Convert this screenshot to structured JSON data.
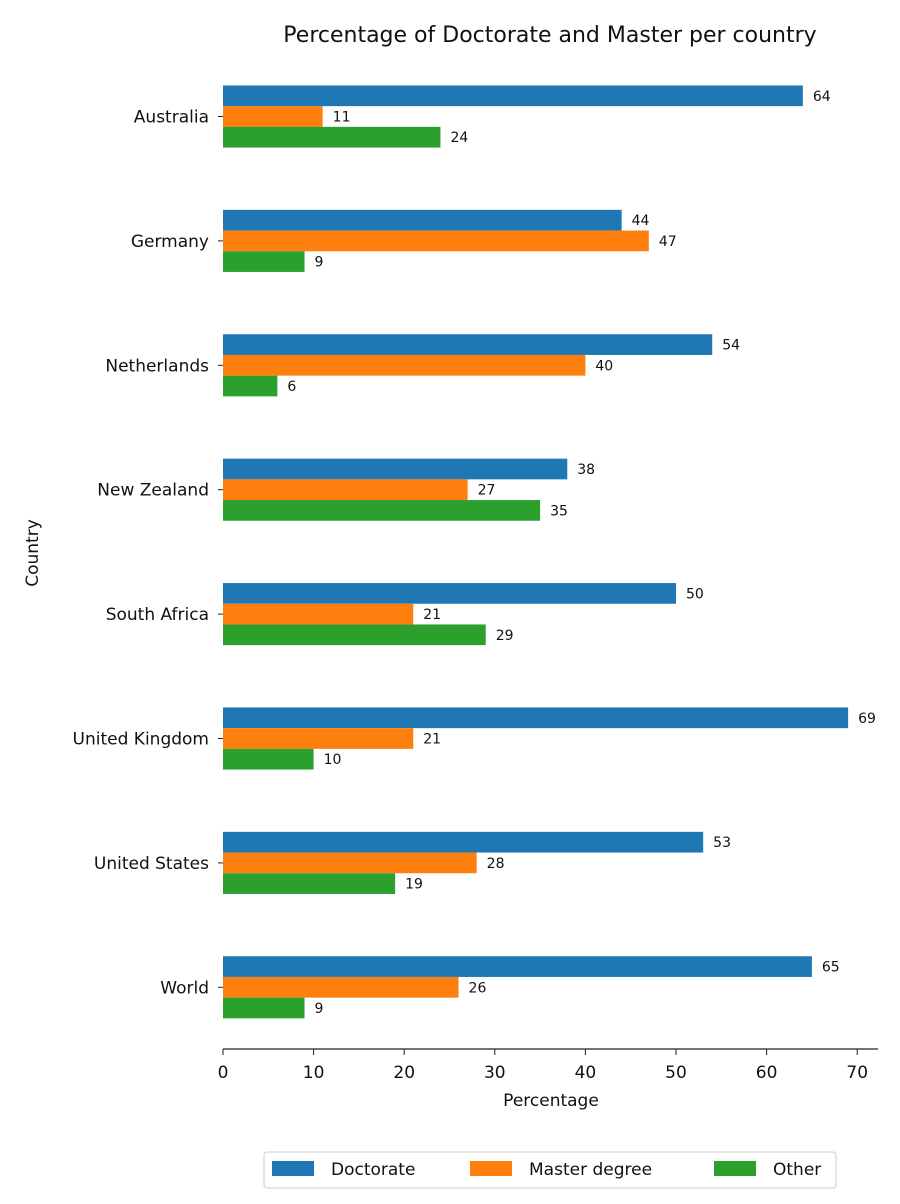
{
  "chart_data": {
    "type": "bar",
    "orientation": "horizontal",
    "title": "Percentage of Doctorate and Master per country",
    "xlabel": "Percentage",
    "ylabel": "Country",
    "xlim": [
      0,
      72.5
    ],
    "xticks": [
      0,
      10,
      20,
      30,
      40,
      50,
      60,
      70
    ],
    "grid": false,
    "legend_position": "bottom-center",
    "categories": [
      "Australia",
      "Germany",
      "Netherlands",
      "New Zealand",
      "South Africa",
      "United Kingdom",
      "United States",
      "World"
    ],
    "series": [
      {
        "name": "Doctorate",
        "color": "#1f77b4",
        "values": [
          64,
          44,
          54,
          38,
          50,
          69,
          53,
          65
        ]
      },
      {
        "name": "Master degree",
        "color": "#ff7f0e",
        "values": [
          11,
          47,
          40,
          27,
          21,
          21,
          28,
          26
        ]
      },
      {
        "name": "Other",
        "color": "#2ca02c",
        "values": [
          24,
          9,
          6,
          35,
          29,
          10,
          19,
          9
        ]
      }
    ]
  }
}
